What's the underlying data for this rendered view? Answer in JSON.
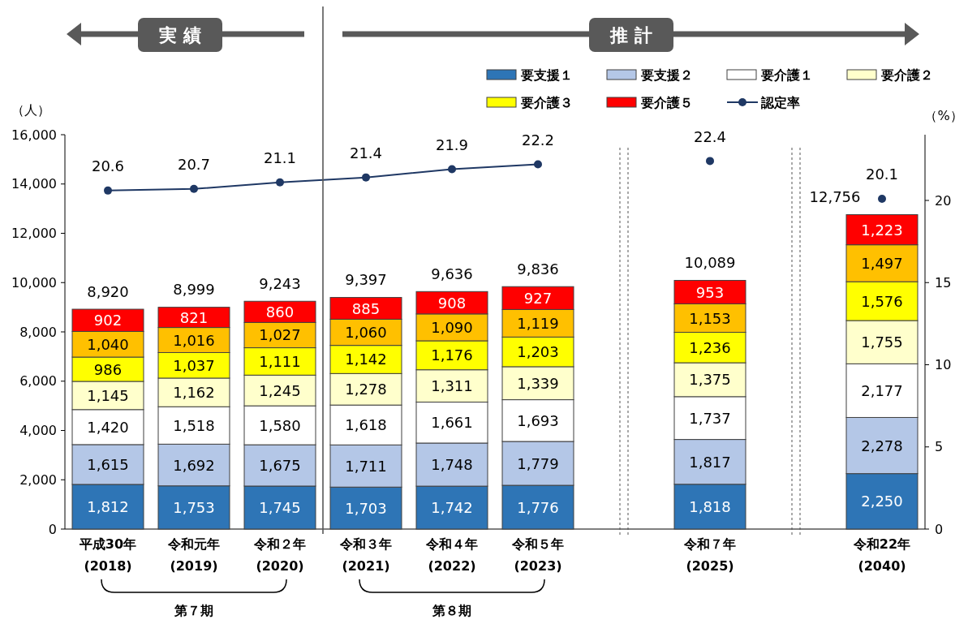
{
  "chart_data": {
    "type": "bar",
    "stacked": true,
    "ylabel": "（人）",
    "y2label": "（%）",
    "categories": [
      "平成30年\n(2018)",
      "令和元年\n(2019)",
      "令和２年\n(2020)",
      "令和３年\n(2021)",
      "令和４年\n(2022)",
      "令和５年\n(2023)",
      null,
      "令和７年\n(2025)",
      null,
      "令和22年\n(2040)"
    ],
    "series": [
      {
        "name": "要支援１",
        "color": "#2e75b6",
        "values": [
          1812,
          1753,
          1745,
          1703,
          1742,
          1776,
          null,
          1818,
          null,
          2250
        ],
        "value_labels": [
          "1,812",
          "1,753",
          "1,745",
          "1,703",
          "1,742",
          "1,776",
          null,
          "1,818",
          null,
          "2,250"
        ]
      },
      {
        "name": "要支援２",
        "color": "#b4c7e7",
        "values": [
          1615,
          1692,
          1675,
          1711,
          1748,
          1779,
          null,
          1817,
          null,
          2278
        ],
        "value_labels": [
          "1,615",
          "1,692",
          "1,675",
          "1,711",
          "1,748",
          "1,779",
          null,
          "1,817",
          null,
          "2,278"
        ]
      },
      {
        "name": "要介護１",
        "color": "#ffffff",
        "values": [
          1420,
          1518,
          1580,
          1618,
          1661,
          1693,
          null,
          1737,
          null,
          2177
        ],
        "value_labels": [
          "1,420",
          "1,518",
          "1,580",
          "1,618",
          "1,661",
          "1,693",
          null,
          "1,737",
          null,
          "2,177"
        ]
      },
      {
        "name": "要介護２",
        "color": "#ffffcc",
        "values": [
          1145,
          1162,
          1245,
          1278,
          1311,
          1339,
          null,
          1375,
          null,
          1755
        ],
        "value_labels": [
          "1,145",
          "1,162",
          "1,245",
          "1,278",
          "1,311",
          "1,339",
          null,
          "1,375",
          null,
          "1,755"
        ]
      },
      {
        "name": "要介護３",
        "color": "#ffff00",
        "values": [
          986,
          1037,
          1111,
          1142,
          1176,
          1203,
          null,
          1236,
          null,
          1576
        ],
        "value_labels": [
          "986",
          "1,037",
          "1,111",
          "1,142",
          "1,176",
          "1,203",
          null,
          "1,236",
          null,
          "1,576"
        ]
      },
      {
        "color": "#ffc000",
        "values": [
          1040,
          1016,
          1027,
          1060,
          1090,
          1119,
          null,
          1153,
          null,
          1497
        ],
        "value_labels": [
          "1,040",
          "1,016",
          "1,027",
          "1,060",
          "1,090",
          "1,119",
          null,
          "1,153",
          null,
          "1,497"
        ]
      },
      {
        "name": "要介護５",
        "color": "#ff0000",
        "values": [
          902,
          821,
          860,
          885,
          908,
          927,
          null,
          953,
          null,
          1223
        ],
        "value_labels": [
          "902",
          "821",
          "860",
          "885",
          "908",
          "927",
          null,
          "953",
          null,
          "1,223"
        ]
      },
      {
        "name": "認定率",
        "type": "line",
        "axis": "y2",
        "color": "#1f3864",
        "values": [
          20.6,
          20.7,
          21.1,
          21.4,
          21.9,
          22.2,
          null,
          22.4,
          null,
          20.1
        ]
      }
    ],
    "totals": [
      "8,920",
      "8,999",
      "9,243",
      "9,397",
      "9,636",
      "9,836",
      null,
      "10,089",
      null,
      "12,756"
    ],
    "data_labels": true,
    "ylim": [
      0,
      16000
    ],
    "yticks": [
      0,
      {
        "value": 2000,
        "label": "2,000"
      },
      {
        "value": 4000,
        "label": "4,000"
      },
      {
        "value": 6000,
        "label": "6,000"
      },
      {
        "value": 8000,
        "label": "8,000"
      },
      {
        "value": 10000,
        "label": "10,000"
      },
      {
        "value": 12000,
        "label": "12,000"
      },
      {
        "value": 14000,
        "label": "14,000"
      },
      {
        "value": 16000,
        "label": "16,000"
      }
    ],
    "y2lim": [
      0,
      24
    ],
    "y2ticks": [
      0,
      5,
      10,
      15,
      20
    ],
    "marker": "circle",
    "legend": "top right",
    "annotations": [
      "実 績",
      "推 計",
      "第７期",
      "第８期"
    ]
  }
}
